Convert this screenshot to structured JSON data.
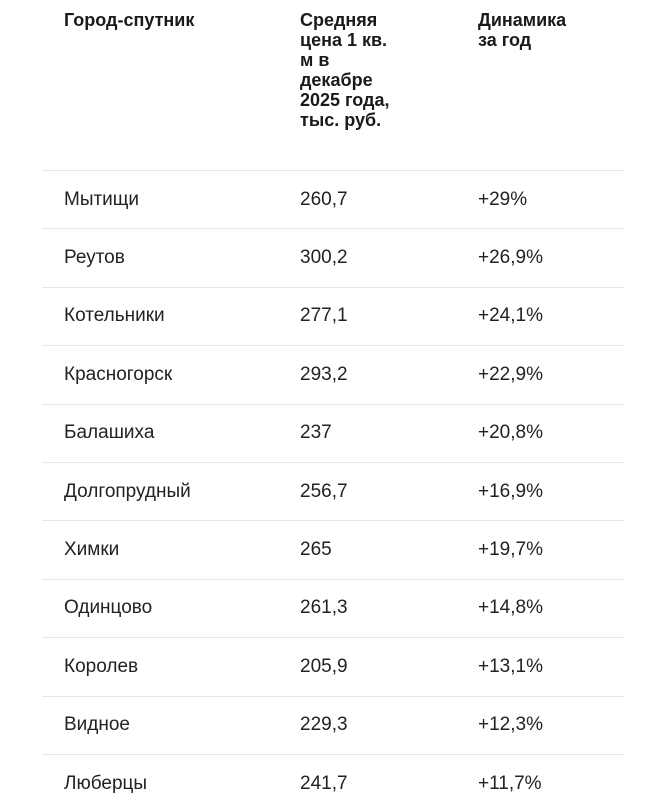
{
  "headers": {
    "city": "Город-спутник",
    "price": "Средняя\nцена 1 кв.\nм в\nдекабре\n2025 года,\nтыс. руб.",
    "dynamics": "Динамика\nза год"
  },
  "rows": [
    {
      "city": "Мытищи",
      "price": "260,7",
      "dynamics": "+29%"
    },
    {
      "city": "Реутов",
      "price": "300,2",
      "dynamics": "+26,9%"
    },
    {
      "city": "Котельники",
      "price": "277,1",
      "dynamics": "+24,1%"
    },
    {
      "city": "Красногорск",
      "price": "293,2",
      "dynamics": "+22,9%"
    },
    {
      "city": "Балашиха",
      "price": "237",
      "dynamics": "+20,8%"
    },
    {
      "city": "Долгопрудный",
      "price": "256,7",
      "dynamics": "+16,9%"
    },
    {
      "city": "Химки",
      "price": "265",
      "dynamics": "+19,7%"
    },
    {
      "city": "Одинцово",
      "price": "261,3",
      "dynamics": "+14,8%"
    },
    {
      "city": "Королев",
      "price": "205,9",
      "dynamics": "+13,1%"
    },
    {
      "city": "Видное",
      "price": "229,3",
      "dynamics": "+12,3%"
    },
    {
      "city": "Люберцы",
      "price": "241,7",
      "dynamics": "+11,7%"
    }
  ]
}
